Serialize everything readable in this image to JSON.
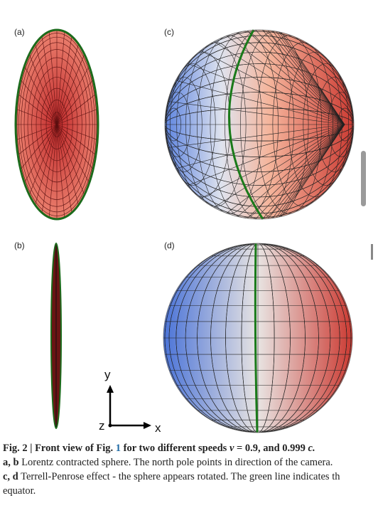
{
  "panels": [
    "(a)",
    "(c)",
    "(b)",
    "(d)"
  ],
  "axes": {
    "y": "y",
    "x": "x",
    "z": "z"
  },
  "caption": {
    "title_start": "Fig. 2 | Front view of Fig.",
    "ref": "1",
    "title_mid": "for two different speeds",
    "v": "v",
    "title_speeds": "= 0.9, and 0.999",
    "c": "c.",
    "line2_bold": "a, b",
    "line2": "Lorentz contracted sphere. The north pole points in direction of the camera.",
    "line3_bold": "c, d",
    "line3": "Terrell-Penrose effect - the sphere appears rotated. The green line indicates th",
    "line4": "equator."
  }
}
